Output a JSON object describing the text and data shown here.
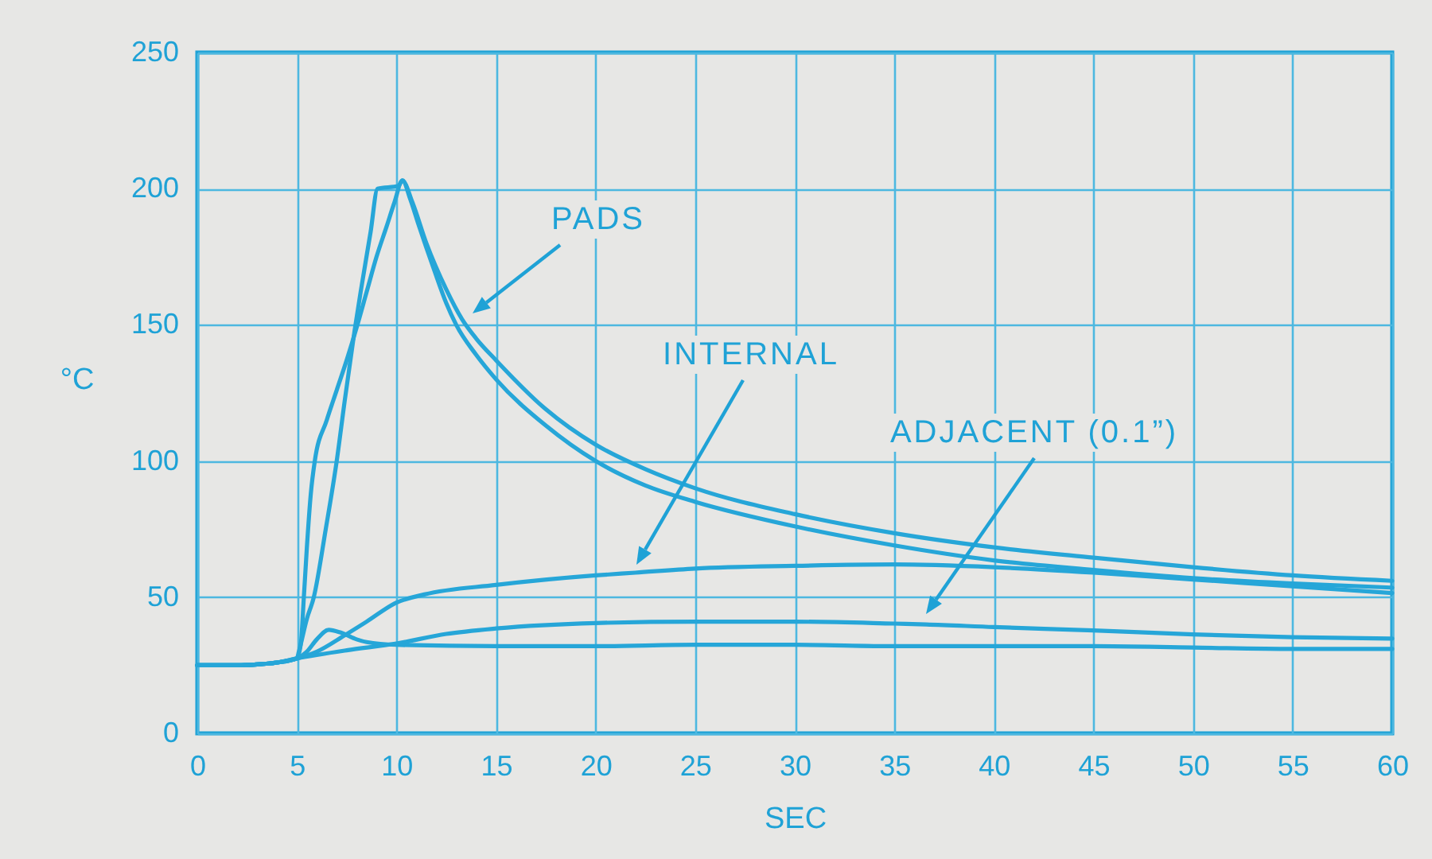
{
  "chart_data": {
    "type": "line",
    "xlabel": "SEC",
    "ylabel": "°C",
    "xlim": [
      0,
      60
    ],
    "xticks": [
      0,
      5,
      10,
      15,
      20,
      25,
      30,
      35,
      40,
      45,
      50,
      55,
      60
    ],
    "ylim": [
      0,
      250
    ],
    "yticks": [
      0,
      50,
      100,
      150,
      200,
      250
    ],
    "grid": true,
    "line_style": "solid",
    "series": [
      {
        "color": "#26a6d8",
        "x": [
          0,
          2,
          3,
          4,
          5,
          5.2,
          5.35,
          5.5,
          5.7,
          5.9,
          6.5,
          7,
          7.5,
          8,
          8.5,
          9,
          9.5,
          9.9,
          10.3,
          10.7,
          11.1,
          11.9,
          12.5,
          13,
          14,
          15,
          17.5,
          20,
          22.5,
          25,
          30,
          35,
          40,
          45,
          50,
          55,
          60
        ],
        "values": [
          25,
          25,
          25.3,
          26,
          27.5,
          33,
          50,
          68,
          88,
          100,
          115,
          126,
          137,
          149,
          162,
          175,
          186,
          195,
          203,
          196,
          187,
          170,
          158,
          150,
          139,
          130,
          113,
          100,
          91,
          85,
          76,
          69,
          63.5,
          60,
          57,
          55,
          53.5
        ]
      },
      {
        "color": "#26a6d8",
        "x": [
          0,
          2,
          3,
          4,
          5,
          5.1,
          5.5,
          5.85,
          6.45,
          7,
          7.4,
          7.9,
          8.2,
          8.7,
          9.05,
          10.1,
          10.3,
          10.8,
          11.5,
          12.5,
          13.3,
          14,
          15,
          17.5,
          20,
          22.5,
          25,
          30,
          35,
          40,
          45,
          50,
          55,
          60
        ],
        "values": [
          25,
          25,
          25.3,
          26,
          27.5,
          30,
          42,
          50,
          75,
          100,
          122,
          148,
          162,
          184,
          200,
          201,
          203,
          195,
          180,
          163,
          152,
          145,
          137,
          119,
          106,
          97,
          90,
          80.5,
          73.5,
          68.3,
          64.5,
          61,
          58,
          56
        ]
      },
      {
        "color": "#26a6d8",
        "x": [
          0,
          2,
          3,
          4,
          5,
          6,
          7.4,
          8.5,
          10,
          11.4,
          15,
          20,
          22,
          25,
          30,
          35,
          40,
          45,
          50,
          55,
          60
        ],
        "values": [
          25,
          25,
          25.3,
          26,
          27.5,
          30,
          36,
          41,
          48,
          51,
          54.5,
          58,
          59,
          60.5,
          61.5,
          62,
          61,
          59,
          56.5,
          54,
          51.5
        ]
      },
      {
        "color": "#26a6d8",
        "x": [
          0,
          2,
          3,
          4,
          5,
          7.5,
          10,
          12.5,
          15,
          20,
          25,
          30,
          35,
          36.6,
          40,
          45,
          50,
          55,
          60
        ],
        "values": [
          25,
          25,
          25.3,
          26,
          27.5,
          30.5,
          33,
          36.5,
          38.5,
          40.5,
          41,
          41,
          40.3,
          40,
          39,
          37.8,
          36.3,
          35.3,
          34.8
        ]
      },
      {
        "color": "#26a6d8",
        "x": [
          0,
          2,
          3,
          4,
          5,
          5.5,
          6,
          6.6,
          7.2,
          8,
          8.5,
          10,
          15,
          20,
          25,
          30,
          35,
          40,
          45,
          50,
          55,
          60
        ],
        "values": [
          25,
          25,
          25.3,
          26,
          27.5,
          30,
          34.5,
          38,
          37,
          34.5,
          33.5,
          32.5,
          32,
          32,
          32.5,
          32.5,
          32,
          32,
          32,
          31.5,
          31,
          31
        ]
      }
    ],
    "annotations": [
      "PADS",
      "INTERNAL",
      "ADJACENT (0.1”)"
    ]
  }
}
